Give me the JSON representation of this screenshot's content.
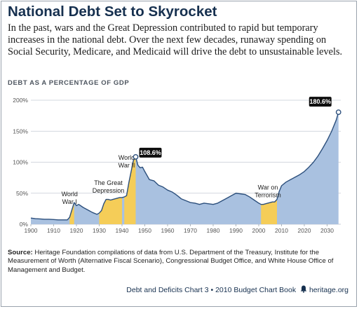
{
  "title": "National Debt Set to Skyrocket",
  "subtitle": "In the past, wars and the Great Depression contributed to rapid but temporary increases in the national debt. Over the next few decades, runaway spending on Social Security, Medicare, and Medicaid will drive the debt to unsustainable levels.",
  "section_label": "DEBT AS A PERCENTAGE OF GDP",
  "source_label": "Source:",
  "source_text": "Heritage Foundation compilations of data from U.S. Department of the Treasury, Institute for the Measurement of Worth (Alternative Fiscal Scenario), Congressional Budget Office, and White House Office of Management and Budget.",
  "footer_text": "Debt and Deficits Chart 3 • 2010 Budget Chart Book",
  "footer_site": "heritage.org",
  "chart_data": {
    "type": "area",
    "xlim": [
      1900,
      2036
    ],
    "ylim": [
      0,
      200
    ],
    "y_ticks": [
      0,
      50,
      100,
      150,
      200
    ],
    "y_tick_labels": [
      "0%",
      "50%",
      "100%",
      "150%",
      "200%"
    ],
    "x_ticks": [
      1900,
      1910,
      1920,
      1930,
      1940,
      1950,
      1960,
      1970,
      1980,
      1990,
      2000,
      2010,
      2020,
      2030
    ],
    "grid": true,
    "colors": {
      "area": "#a9c1e0",
      "highlight": "#f5cd58",
      "line": "#2c4f7c",
      "grid": "#c4cbd4"
    },
    "series": [
      {
        "x": [
          1900,
          1902,
          1904,
          1906,
          1908,
          1910,
          1912,
          1914,
          1916,
          1917,
          1918,
          1919,
          1920,
          1921,
          1923,
          1925,
          1927,
          1929,
          1930,
          1931,
          1932,
          1933,
          1934,
          1935,
          1936,
          1938,
          1939,
          1940,
          1941,
          1942,
          1943,
          1944,
          1945,
          1946,
          1947,
          1948,
          1949,
          1950,
          1952,
          1954,
          1956,
          1958,
          1960,
          1962,
          1964,
          1966,
          1968,
          1970,
          1972,
          1974,
          1975,
          1976,
          1978,
          1980,
          1982,
          1984,
          1986,
          1988,
          1990,
          1992,
          1994,
          1996,
          1998,
          2000,
          2001,
          2002,
          2004,
          2006,
          2007,
          2008,
          2009,
          2010,
          2012,
          2014,
          2016,
          2018,
          2020,
          2022,
          2024,
          2026,
          2028,
          2030,
          2032,
          2034,
          2035
        ],
        "y": [
          10,
          9,
          8.5,
          8,
          8,
          7.5,
          7,
          7,
          7,
          11,
          23,
          35,
          30,
          32,
          27,
          23,
          19,
          16,
          18,
          22,
          33,
          40,
          40,
          39,
          40,
          42,
          43,
          43,
          44,
          46,
          67,
          85,
          103,
          108.6,
          95,
          91,
          92,
          85,
          72,
          70,
          63,
          60,
          55,
          52,
          47,
          41,
          38,
          35,
          34,
          32,
          33,
          34,
          33,
          32,
          34,
          38,
          42,
          46,
          50,
          49,
          48,
          44,
          39,
          34,
          32,
          32,
          34,
          36,
          36,
          40,
          53,
          62,
          68,
          72,
          76,
          80,
          85,
          92,
          100,
          110,
          122,
          135,
          150,
          168,
          180.6
        ]
      }
    ],
    "highlight_ranges": [
      [
        1917,
        1919
      ],
      [
        1930,
        1940
      ],
      [
        1941,
        1946
      ],
      [
        2001,
        2008
      ]
    ],
    "annotations": [
      {
        "text": "World",
        "text2": "War I",
        "x": 1917,
        "y": 27
      },
      {
        "text": "The Great",
        "text2": "Depression",
        "x": 1934,
        "y": 45
      },
      {
        "text": "World",
        "text2": "War II",
        "x": 1942,
        "y": 86
      },
      {
        "text": "War on",
        "text2": "Terrorism",
        "x": 2004,
        "y": 38
      }
    ],
    "callouts": [
      {
        "label": "108.6%",
        "x": 1946,
        "y": 108.6
      },
      {
        "label": "180.6%",
        "x": 2035,
        "y": 180.6
      }
    ]
  }
}
